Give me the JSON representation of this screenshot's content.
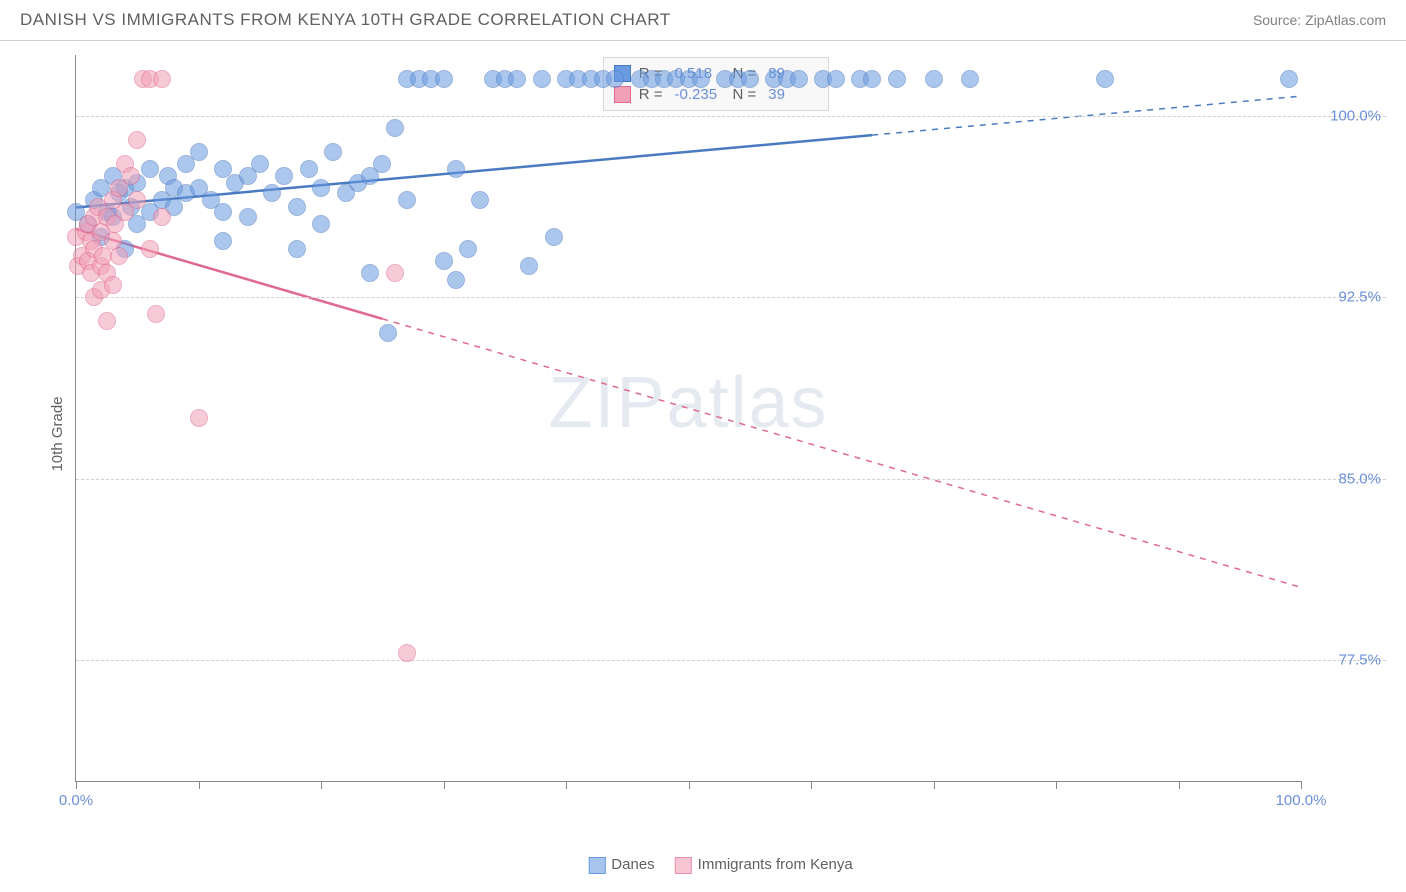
{
  "header": {
    "title": "DANISH VS IMMIGRANTS FROM KENYA 10TH GRADE CORRELATION CHART",
    "source": "Source: ZipAtlas.com"
  },
  "chart": {
    "type": "scatter",
    "ylabel": "10th Grade",
    "watermark": "ZIPatlas",
    "background_color": "#ffffff",
    "grid_color": "#d0d0d0",
    "axis_color": "#888888",
    "tick_label_color": "#6a8fd8",
    "label_color": "#606060",
    "xlim": [
      0,
      100
    ],
    "ylim": [
      72.5,
      102.5
    ],
    "xticks": [
      0,
      10,
      20,
      30,
      40,
      50,
      60,
      70,
      80,
      90,
      100
    ],
    "xtick_labels": {
      "0": "0.0%",
      "100": "100.0%"
    },
    "yticks": [
      77.5,
      85.0,
      92.5,
      100.0
    ],
    "ytick_labels": [
      "77.5%",
      "85.0%",
      "92.5%",
      "100.0%"
    ],
    "point_radius": 9,
    "point_opacity": 0.55,
    "series": [
      {
        "name": "Danes",
        "color": "#6a9ae0",
        "stroke": "#4a7ac0",
        "R": "0.518",
        "N": "89",
        "trend": {
          "x1": 0,
          "y1": 96.2,
          "x2": 100,
          "y2": 100.8,
          "solid_until_x": 65
        },
        "points": [
          [
            0,
            96
          ],
          [
            1,
            95.5
          ],
          [
            1.5,
            96.5
          ],
          [
            2,
            95
          ],
          [
            2,
            97
          ],
          [
            2.5,
            96
          ],
          [
            3,
            97.5
          ],
          [
            3,
            95.8
          ],
          [
            3.5,
            96.8
          ],
          [
            4,
            97
          ],
          [
            4,
            94.5
          ],
          [
            4.5,
            96.2
          ],
          [
            5,
            97.2
          ],
          [
            5,
            95.5
          ],
          [
            6,
            97.8
          ],
          [
            6,
            96
          ],
          [
            7,
            96.5
          ],
          [
            7.5,
            97.5
          ],
          [
            8,
            97
          ],
          [
            8,
            96.2
          ],
          [
            9,
            98
          ],
          [
            9,
            96.8
          ],
          [
            10,
            98.5
          ],
          [
            10,
            97
          ],
          [
            11,
            96.5
          ],
          [
            12,
            97.8
          ],
          [
            12,
            96
          ],
          [
            12,
            94.8
          ],
          [
            13,
            97.2
          ],
          [
            14,
            97.5
          ],
          [
            14,
            95.8
          ],
          [
            15,
            98
          ],
          [
            16,
            96.8
          ],
          [
            17,
            97.5
          ],
          [
            18,
            96.2
          ],
          [
            18,
            94.5
          ],
          [
            19,
            97.8
          ],
          [
            20,
            97
          ],
          [
            20,
            95.5
          ],
          [
            21,
            98.5
          ],
          [
            22,
            96.8
          ],
          [
            23,
            97.2
          ],
          [
            24,
            93.5
          ],
          [
            24,
            97.5
          ],
          [
            25,
            98
          ],
          [
            25.5,
            91
          ],
          [
            26,
            99.5
          ],
          [
            27,
            96.5
          ],
          [
            27,
            101.5
          ],
          [
            28,
            101.5
          ],
          [
            29,
            101.5
          ],
          [
            30,
            94
          ],
          [
            30,
            101.5
          ],
          [
            31,
            93.2
          ],
          [
            31,
            97.8
          ],
          [
            32,
            94.5
          ],
          [
            33,
            96.5
          ],
          [
            34,
            101.5
          ],
          [
            35,
            101.5
          ],
          [
            36,
            101.5
          ],
          [
            37,
            93.8
          ],
          [
            38,
            101.5
          ],
          [
            39,
            95
          ],
          [
            40,
            101.5
          ],
          [
            41,
            101.5
          ],
          [
            42,
            101.5
          ],
          [
            43,
            101.5
          ],
          [
            44,
            101.5
          ],
          [
            46,
            101.5
          ],
          [
            47,
            101.5
          ],
          [
            48,
            101.5
          ],
          [
            49,
            101.5
          ],
          [
            50,
            101.5
          ],
          [
            51,
            101.5
          ],
          [
            53,
            101.5
          ],
          [
            54,
            101.5
          ],
          [
            55,
            101.5
          ],
          [
            57,
            101.5
          ],
          [
            58,
            101.5
          ],
          [
            59,
            101.5
          ],
          [
            61,
            101.5
          ],
          [
            62,
            101.5
          ],
          [
            64,
            101.5
          ],
          [
            65,
            101.5
          ],
          [
            67,
            101.5
          ],
          [
            70,
            101.5
          ],
          [
            73,
            101.5
          ],
          [
            84,
            101.5
          ],
          [
            99,
            101.5
          ]
        ]
      },
      {
        "name": "Immigrants from Kenya",
        "color": "#f2a0b8",
        "stroke": "#e06a8e",
        "R": "-0.235",
        "N": "39",
        "trend": {
          "x1": 0,
          "y1": 95.3,
          "x2": 100,
          "y2": 80.5,
          "solid_until_x": 25
        },
        "points": [
          [
            0,
            95
          ],
          [
            0.2,
            93.8
          ],
          [
            0.5,
            94.2
          ],
          [
            0.8,
            95.2
          ],
          [
            1,
            94
          ],
          [
            1,
            95.5
          ],
          [
            1.2,
            93.5
          ],
          [
            1.2,
            94.8
          ],
          [
            1.5,
            95.8
          ],
          [
            1.5,
            94.5
          ],
          [
            1.8,
            96.2
          ],
          [
            2,
            93.8
          ],
          [
            2,
            95.2
          ],
          [
            2.2,
            94.2
          ],
          [
            2.5,
            95.8
          ],
          [
            2.5,
            93.5
          ],
          [
            3,
            96.5
          ],
          [
            3,
            94.8
          ],
          [
            3.2,
            95.5
          ],
          [
            3.5,
            94.2
          ],
          [
            3.5,
            97
          ],
          [
            4,
            96
          ],
          [
            4,
            98
          ],
          [
            4.5,
            97.5
          ],
          [
            5,
            96.5
          ],
          [
            5,
            99
          ],
          [
            5.5,
            101.5
          ],
          [
            6,
            94.5
          ],
          [
            6.5,
            91.8
          ],
          [
            1.5,
            92.5
          ],
          [
            2,
            92.8
          ],
          [
            2.5,
            91.5
          ],
          [
            3,
            93
          ],
          [
            6,
            101.5
          ],
          [
            7,
            101.5
          ],
          [
            10,
            87.5
          ],
          [
            26,
            93.5
          ],
          [
            27,
            77.8
          ],
          [
            7,
            95.8
          ]
        ]
      }
    ],
    "legend_top": {
      "r_label": "R =",
      "n_label": "N ="
    },
    "legend_bottom": [
      {
        "label": "Danes",
        "color": "#a8c5ed",
        "stroke": "#6a9ae0"
      },
      {
        "label": "Immigrants from Kenya",
        "color": "#f7c5d4",
        "stroke": "#e890aa"
      }
    ]
  }
}
